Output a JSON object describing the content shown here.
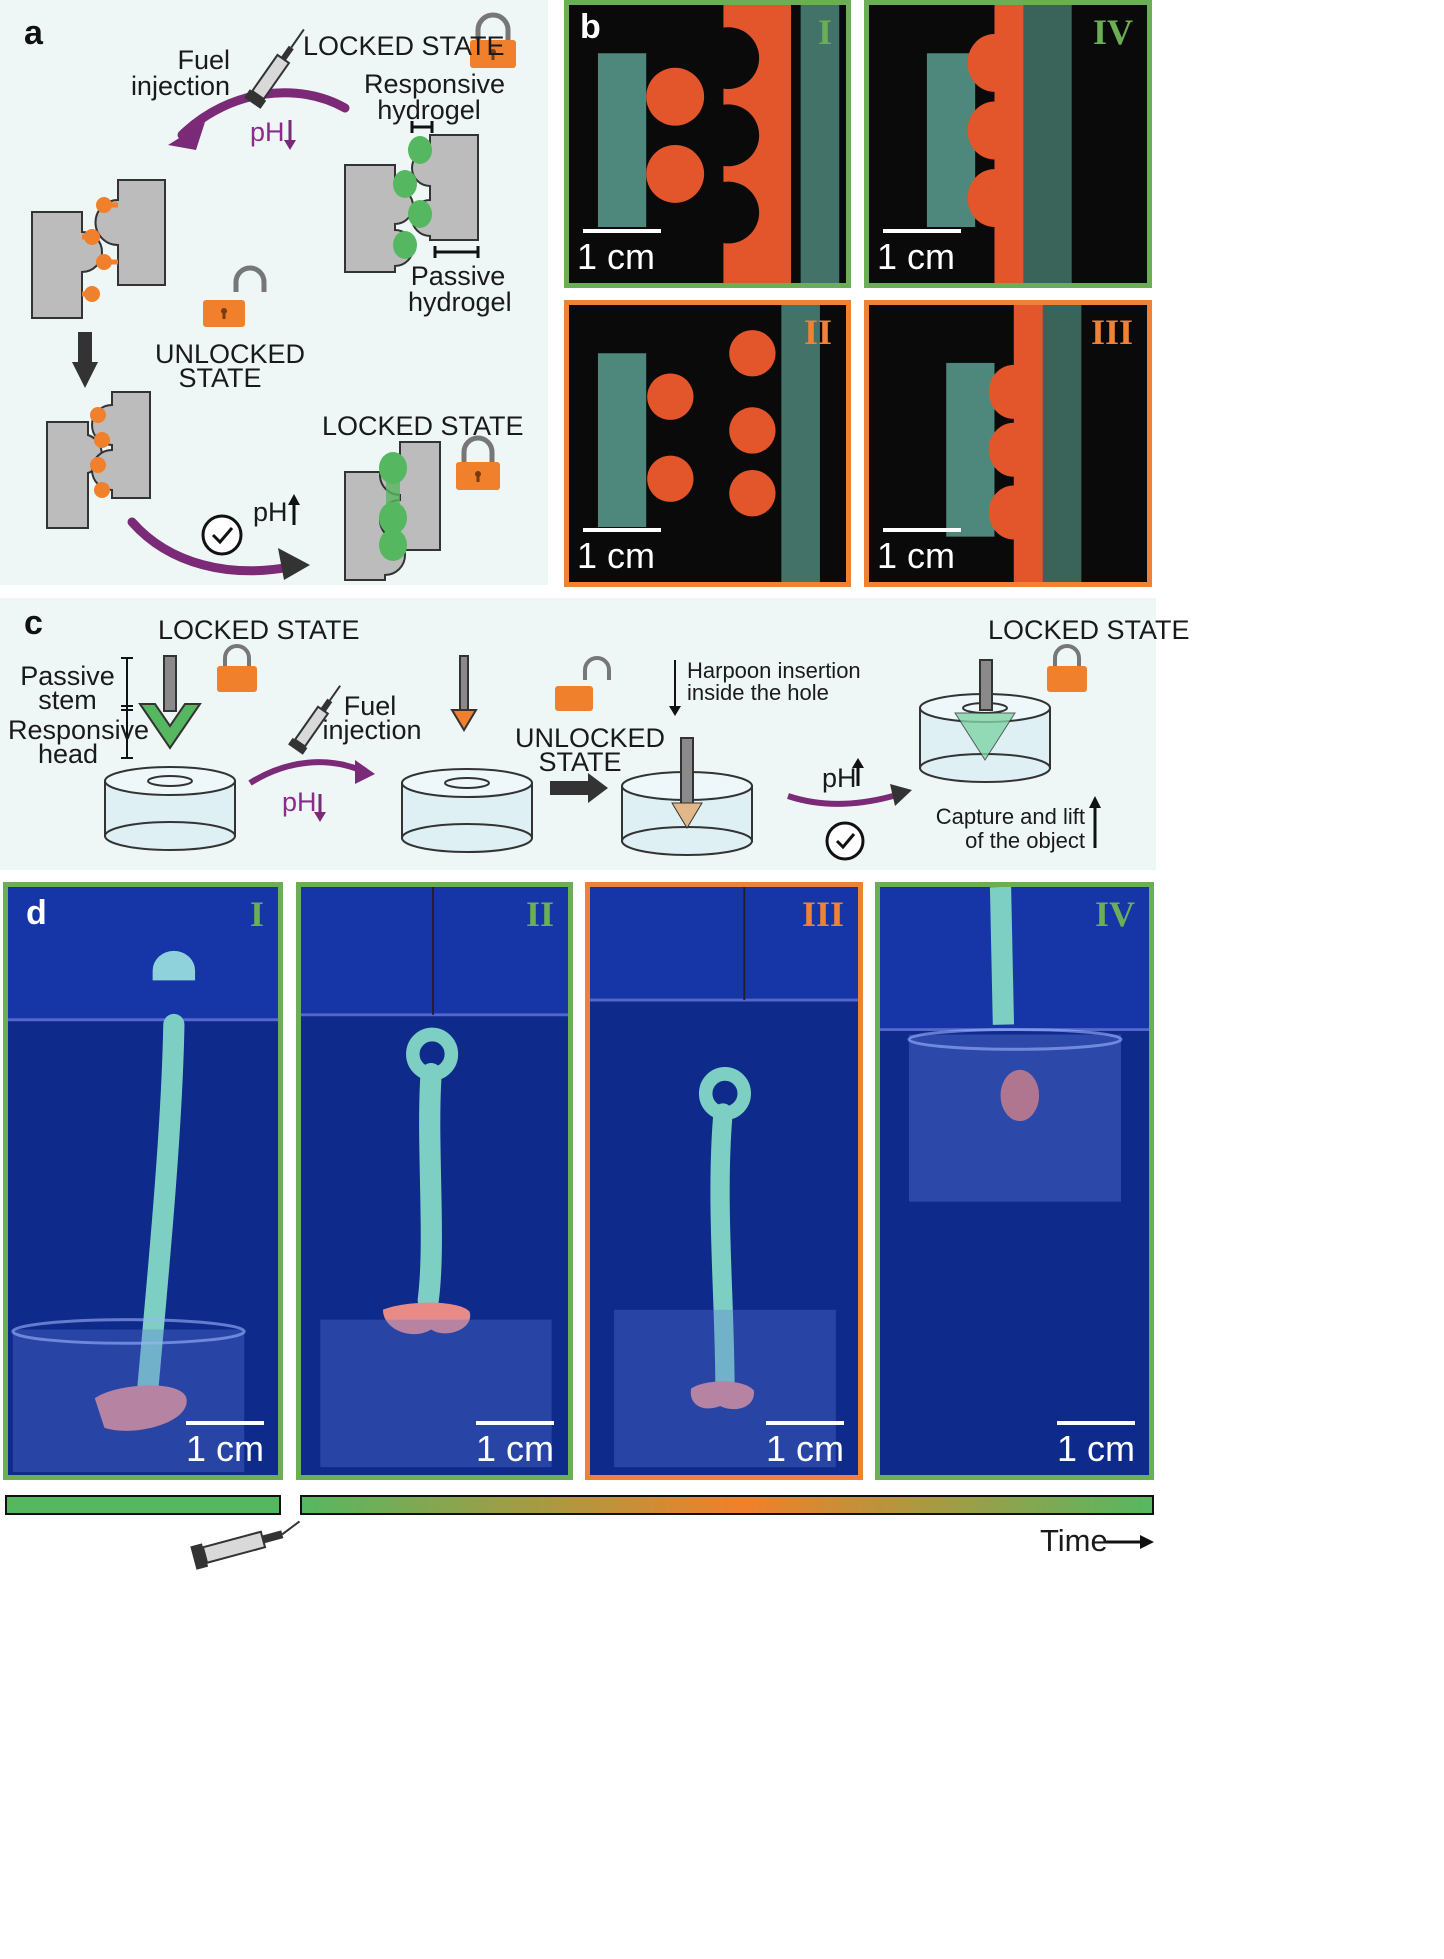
{
  "colors": {
    "locked_green": "#55b860",
    "unlocked_orange": "#f0802b",
    "bg": "#eef7f6",
    "frame_green": "#6aae56",
    "frame_orange": "#ee8236",
    "arrow_purple": "#7b2a78",
    "gray_part": "#bcbcbc"
  },
  "a": {
    "letter": "a",
    "locked_state_top": "LOCKED STATE",
    "fuel_injection_1": "Fuel",
    "fuel_injection_2": "injection",
    "ph_down": "pH",
    "responsive_hydrogel_1": "Responsive",
    "responsive_hydrogel_2": "hydrogel",
    "passive_hydrogel_1": "Passive",
    "passive_hydrogel_2": "hydrogel",
    "unlocked_state_1": "UNLOCKED",
    "unlocked_state_2": "STATE",
    "locked_state_bottom": "LOCKED STATE",
    "ph_up": "pH",
    "icons": [
      "syringe-icon",
      "padlock-locked-icon",
      "padlock-unlocked-icon",
      "clock-icon"
    ]
  },
  "b": {
    "letter": "b",
    "panels": [
      {
        "roman": "I",
        "scale": "1 cm",
        "state": "locked"
      },
      {
        "roman": "IV",
        "scale": "1 cm",
        "state": "locked"
      },
      {
        "roman": "II",
        "scale": "1 cm",
        "state": "unlocked"
      },
      {
        "roman": "III",
        "scale": "1 cm",
        "state": "unlocked"
      }
    ]
  },
  "c": {
    "letter": "c",
    "locked_state_left": "LOCKED STATE",
    "passive_stem_1": "Passive",
    "passive_stem_2": "stem",
    "responsive_head_1": "Responsive",
    "responsive_head_2": "head",
    "fuel_injection_1": "Fuel",
    "fuel_injection_2": "injection",
    "ph_down": "pH",
    "unlocked_state_1": "UNLOCKED",
    "unlocked_state_2": "STATE",
    "harpoon_1": "Harpoon insertion",
    "harpoon_2": "inside the hole",
    "ph_up": "pH",
    "locked_state_right": "LOCKED STATE",
    "capture_1": "Capture and lift",
    "capture_2": "of the object"
  },
  "d": {
    "letter": "d",
    "panels": [
      {
        "roman": "I",
        "scale": "1 cm",
        "state": "locked"
      },
      {
        "roman": "II",
        "scale": "1 cm",
        "state": "locked"
      },
      {
        "roman": "III",
        "scale": "1 cm",
        "state": "unlocked"
      },
      {
        "roman": "IV",
        "scale": "1 cm",
        "state": "locked"
      }
    ],
    "time_label": "Time"
  }
}
